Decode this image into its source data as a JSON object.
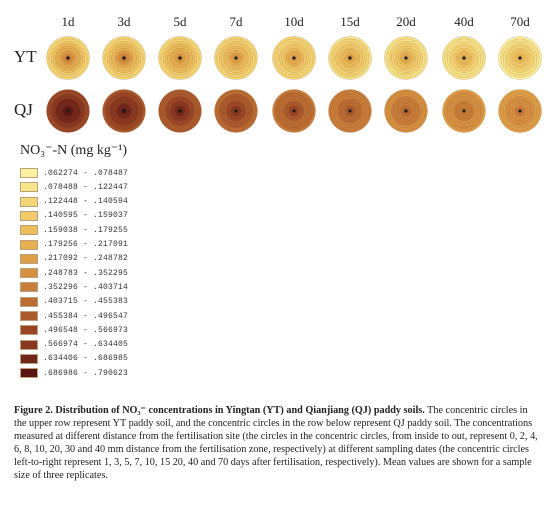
{
  "days": [
    "1d",
    "3d",
    "5d",
    "7d",
    "10d",
    "15d",
    "20d",
    "40d",
    "70d"
  ],
  "rows": [
    {
      "label": "YT",
      "key": "yt"
    },
    {
      "label": "QJ",
      "key": "qj"
    }
  ],
  "legend": {
    "title": "NO₃⁻-N (mg kg⁻¹)",
    "classes": [
      {
        "range": ".062274 - .078487",
        "color": "#fbf1a0"
      },
      {
        "range": ".078488 - .122447",
        "color": "#f8e48a"
      },
      {
        "range": ".122448 - .140594",
        "color": "#f5d677"
      },
      {
        "range": ".140595 - .159037",
        "color": "#f1ca6a"
      },
      {
        "range": ".159038 - .179255",
        "color": "#ecbd5d"
      },
      {
        "range": ".179256 - .217091",
        "color": "#e6af52"
      },
      {
        "range": ".217092 - .248782",
        "color": "#df9f49"
      },
      {
        "range": ".248783 - .352295",
        "color": "#d69042"
      },
      {
        "range": ".352296 - .403714",
        "color": "#c97d3a"
      },
      {
        "range": ".403715 - .455383",
        "color": "#bb6c33"
      },
      {
        "range": ".455384 - .496547",
        "color": "#ab5a2d"
      },
      {
        "range": ".496548 - .566973",
        "color": "#9a4626"
      },
      {
        "range": ".566974 - .634405",
        "color": "#883720"
      },
      {
        "range": ".634406 - .686985",
        "color": "#72261a"
      },
      {
        "range": ".686986 - .790623",
        "color": "#5a1513"
      }
    ]
  },
  "chart_data": {
    "type": "heatmap",
    "description_note": "",
    "x": [
      "1d",
      "3d",
      "5d",
      "7d",
      "10d",
      "15d",
      "20d",
      "40d",
      "70d"
    ],
    "rings_mm": [
      0,
      2,
      4,
      6,
      8,
      10,
      20,
      30,
      40
    ],
    "yt_class_index": [
      [
        8,
        8,
        7,
        6,
        6,
        6,
        5,
        5,
        4
      ],
      [
        7,
        7,
        6,
        6,
        5,
        5,
        5,
        4,
        4
      ],
      [
        6,
        6,
        5,
        5,
        5,
        4,
        4,
        4,
        3
      ],
      [
        5,
        5,
        5,
        4,
        4,
        4,
        3,
        3,
        3
      ],
      [
        5,
        4,
        4,
        4,
        3,
        3,
        3,
        2,
        2
      ],
      [
        4,
        4,
        4,
        3,
        3,
        3,
        2,
        2,
        2
      ],
      [
        3,
        3,
        3,
        3,
        2,
        2,
        2,
        1,
        1
      ],
      [
        2,
        2,
        2,
        2,
        2,
        2,
        1,
        1,
        1
      ],
      [
        2,
        2,
        2,
        2,
        2,
        1,
        1,
        1,
        0
      ]
    ],
    "qj_class_index": [
      [
        14,
        14,
        13,
        12,
        11,
        10,
        9,
        8,
        8
      ],
      [
        14,
        13,
        13,
        12,
        11,
        10,
        9,
        8,
        8
      ],
      [
        13,
        13,
        12,
        11,
        10,
        9,
        8,
        8,
        7
      ],
      [
        13,
        12,
        12,
        11,
        10,
        9,
        8,
        8,
        7
      ],
      [
        13,
        12,
        11,
        10,
        9,
        9,
        8,
        7,
        7
      ],
      [
        12,
        12,
        11,
        10,
        9,
        8,
        8,
        7,
        7
      ],
      [
        12,
        11,
        10,
        10,
        9,
        8,
        7,
        7,
        6
      ],
      [
        11,
        11,
        10,
        9,
        9,
        8,
        7,
        7,
        6
      ],
      [
        11,
        10,
        10,
        9,
        8,
        8,
        7,
        6,
        6
      ]
    ]
  },
  "caption": {
    "title": "Figure 2.  Distribution of NO₃⁻ concentrations in Yingtan (YT) and Qianjiang (QJ) paddy soils.",
    "body": " The concentric circles in the upper row represent YT paddy soil, and the concentric circles in the row below represent QJ paddy soil. The concentrations measured at different distance from the fertilisation site (the circles in the concentric circles, from inside to out, represent 0, 2, 4, 6, 8, 10, 20, 30 and 40 mm distance from the fertilisation zone, respectively) at different sampling dates (the concentric circles left-to-right represent 1, 3, 5, 7, 10, 15 20, 40 and 70 days after fertilisation, respectively). Mean values are shown for a sample size of three replicates."
  }
}
